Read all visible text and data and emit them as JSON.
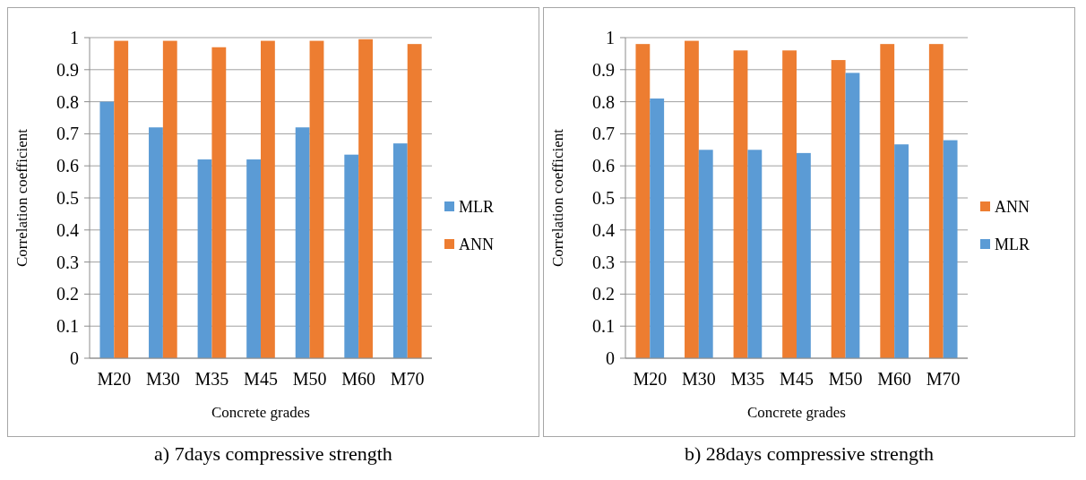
{
  "chart_data": [
    {
      "type": "bar",
      "title": "a) 7days compressive strength",
      "xlabel": "Concrete grades",
      "ylabel": "Correlation coefficient",
      "categories": [
        "M20",
        "M30",
        "M35",
        "M45",
        "M50",
        "M60",
        "M70"
      ],
      "series": [
        {
          "name": "MLR",
          "color": "#5b9bd5",
          "values": [
            0.8,
            0.72,
            0.62,
            0.62,
            0.72,
            0.635,
            0.67
          ]
        },
        {
          "name": "ANN",
          "color": "#ed7d31",
          "values": [
            0.99,
            0.99,
            0.97,
            0.99,
            0.99,
            0.995,
            0.98
          ]
        }
      ],
      "ylim": [
        0,
        1
      ],
      "yticks": [
        0,
        0.1,
        0.2,
        0.3,
        0.4,
        0.5,
        0.6,
        0.7,
        0.8,
        0.9,
        1
      ],
      "grid": "y",
      "legend": "right"
    },
    {
      "type": "bar",
      "title": "b) 28days compressive strength",
      "xlabel": "Concrete grades",
      "ylabel": "Correlation coefficient",
      "categories": [
        "M20",
        "M30",
        "M35",
        "M45",
        "M50",
        "M60",
        "M70"
      ],
      "series": [
        {
          "name": "ANN",
          "color": "#ed7d31",
          "values": [
            0.98,
            0.99,
            0.96,
            0.96,
            0.93,
            0.98,
            0.98
          ]
        },
        {
          "name": "MLR",
          "color": "#5b9bd5",
          "values": [
            0.81,
            0.65,
            0.65,
            0.64,
            0.89,
            0.667,
            0.68
          ]
        }
      ],
      "ylim": [
        0,
        1
      ],
      "yticks": [
        0,
        0.1,
        0.2,
        0.3,
        0.4,
        0.5,
        0.6,
        0.7,
        0.8,
        0.9,
        1
      ],
      "grid": "y",
      "legend": "right"
    }
  ]
}
